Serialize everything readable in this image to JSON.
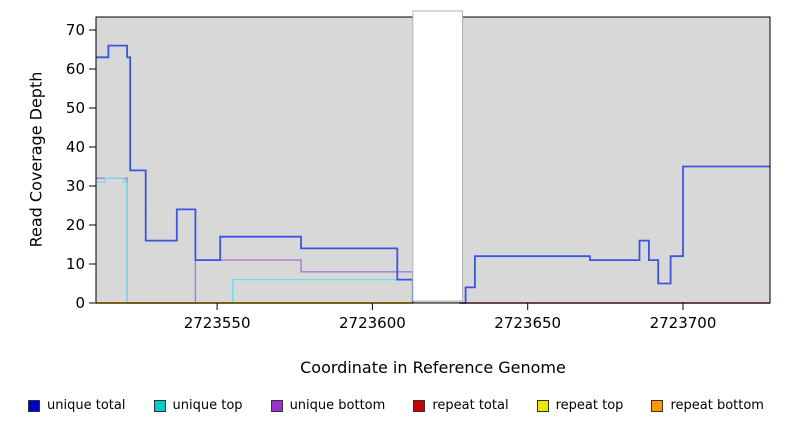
{
  "chart_data": {
    "type": "line",
    "subtype": "step-coverage",
    "title": "",
    "xlabel": "Coordinate in Reference Genome",
    "ylabel": "Read Coverage Depth",
    "xlim": [
      2723511,
      2723728
    ],
    "ylim": [
      0,
      70
    ],
    "xticks": [
      2723550,
      2723600,
      2723650,
      2723700
    ],
    "yticks": [
      0,
      10,
      20,
      30,
      40,
      50,
      60,
      70
    ],
    "plot_bg": "#d8d8d8",
    "page_bg": "#ffffff",
    "axis_color": "#000000",
    "grid": "off",
    "legend_position": "bottom",
    "gap_region": {
      "x_start": 2723613,
      "x_end": 2723629,
      "fill": "#ffffff",
      "outline": "#b3b3b3"
    },
    "draw_order": [
      2,
      1,
      4,
      5,
      3,
      0
    ],
    "series": [
      {
        "name": "unique total",
        "color": "#3a55e0",
        "legend_color": "#0000cc",
        "segments": [
          [
            [
              2723511,
              63
            ],
            [
              2723515,
              66
            ],
            [
              2723521,
              63
            ],
            [
              2723522,
              34
            ],
            [
              2723527,
              16
            ],
            [
              2723537,
              24
            ],
            [
              2723543,
              11
            ],
            [
              2723551,
              17
            ],
            [
              2723577,
              14
            ],
            [
              2723608,
              6
            ],
            [
              2723613,
              0
            ]
          ],
          [
            [
              2723628,
              0
            ],
            [
              2723630,
              4
            ],
            [
              2723633,
              12
            ],
            [
              2723670,
              11
            ],
            [
              2723686,
              16
            ],
            [
              2723689,
              11
            ],
            [
              2723692,
              5
            ],
            [
              2723696,
              12
            ],
            [
              2723700,
              35
            ],
            [
              2723728,
              35
            ]
          ]
        ]
      },
      {
        "name": "unique top",
        "color": "#6fdde8",
        "legend_color": "#00cccc",
        "segments": [
          [
            [
              2723511,
              31
            ],
            [
              2723514,
              32
            ],
            [
              2723520,
              31
            ],
            [
              2723521,
              0
            ],
            [
              2723555,
              6
            ],
            [
              2723613,
              0
            ]
          ]
        ]
      },
      {
        "name": "unique bottom",
        "color": "#ab7ad2",
        "legend_color": "#9933cc",
        "segments": [
          [
            [
              2723511,
              32
            ],
            [
              2723521,
              0
            ],
            [
              2723543,
              11
            ],
            [
              2723577,
              8
            ],
            [
              2723608,
              8
            ],
            [
              2723613,
              0
            ]
          ]
        ]
      },
      {
        "name": "repeat total",
        "color": "#cc2233",
        "legend_color": "#cc0000",
        "segments": [
          [
            [
              2723629,
              0
            ],
            [
              2723728,
              0
            ]
          ]
        ]
      },
      {
        "name": "repeat top",
        "color": "#e8e800",
        "legend_color": "#e8e800",
        "segments": [
          [
            [
              2723511,
              0
            ],
            [
              2723613,
              0
            ]
          ]
        ]
      },
      {
        "name": "repeat bottom",
        "color": "#ff9900",
        "legend_color": "#ff9900",
        "segments": [
          [
            [
              2723511,
              0
            ],
            [
              2723613,
              0
            ]
          ]
        ]
      }
    ]
  }
}
